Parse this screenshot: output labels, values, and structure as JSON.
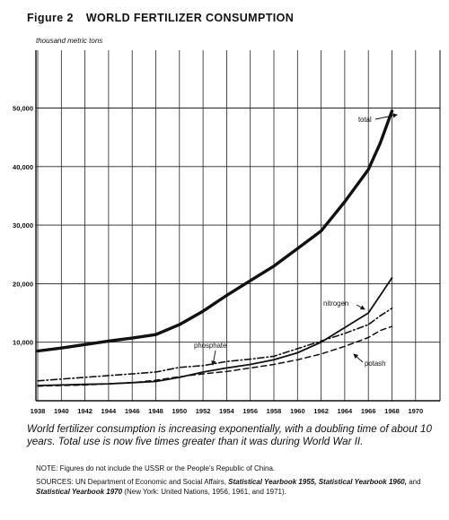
{
  "figure": {
    "number_label": "Figure 2",
    "title": "WORLD FERTILIZER CONSUMPTION",
    "unit_label": "thousand metric tons"
  },
  "caption": "World fertilizer consumption is increasing exponentially, with a doubling time of about 10 years. Total use is now five times greater than it was during World War II.",
  "note": "NOTE: Figures do not include the USSR or the People's Republic of China.",
  "sources": {
    "prefix": "SOURCES: UN Department of Economic and Social Affairs,",
    "book1": "Statistical Yearbook 1955,",
    "book2": "Statistical Yearbook 1960,",
    "and_word": "and",
    "book3": "Statistical Yearbook 1970",
    "suffix": "(New York: United Nations, 1956, 1961, and 1971)."
  },
  "chart_data": {
    "type": "line",
    "title": "WORLD FERTILIZER CONSUMPTION",
    "ylabel": "thousand metric tons",
    "xlabel": "",
    "xlim": [
      1938,
      1970
    ],
    "ylim": [
      0,
      60000
    ],
    "x_ticks": [
      "1938",
      "1940",
      "1942",
      "1944",
      "1946",
      "1948",
      "1950",
      "1952",
      "1954",
      "1956",
      "1958",
      "1960",
      "1962",
      "1964",
      "1966",
      "1968",
      "1970"
    ],
    "y_ticks": [
      "10,000",
      "20,000",
      "30,000",
      "40,000",
      "50,000"
    ],
    "y_tick_values": [
      10000,
      20000,
      30000,
      40000,
      50000
    ],
    "grid": true,
    "series": [
      {
        "name": "total",
        "style": "solid-thick",
        "points": [
          [
            1938,
            8500
          ],
          [
            1940,
            9000
          ],
          [
            1942,
            9600
          ],
          [
            1944,
            10200
          ],
          [
            1946,
            10700
          ],
          [
            1948,
            11300
          ],
          [
            1950,
            13000
          ],
          [
            1952,
            15300
          ],
          [
            1954,
            18000
          ],
          [
            1956,
            20500
          ],
          [
            1958,
            23000
          ],
          [
            1960,
            26000
          ],
          [
            1962,
            29000
          ],
          [
            1964,
            34000
          ],
          [
            1966,
            39500
          ],
          [
            1967,
            44000
          ],
          [
            1968,
            49500
          ]
        ]
      },
      {
        "name": "nitrogen",
        "style": "solid",
        "points": [
          [
            1938,
            2600
          ],
          [
            1940,
            2700
          ],
          [
            1942,
            2800
          ],
          [
            1944,
            2900
          ],
          [
            1946,
            3100
          ],
          [
            1948,
            3300
          ],
          [
            1950,
            4000
          ],
          [
            1952,
            4900
          ],
          [
            1954,
            5600
          ],
          [
            1956,
            6200
          ],
          [
            1958,
            7000
          ],
          [
            1960,
            8200
          ],
          [
            1962,
            10000
          ],
          [
            1964,
            12500
          ],
          [
            1966,
            15000
          ],
          [
            1967,
            18000
          ],
          [
            1968,
            21000
          ]
        ]
      },
      {
        "name": "phosphate",
        "style": "dash-dot",
        "points": [
          [
            1938,
            3400
          ],
          [
            1940,
            3700
          ],
          [
            1942,
            4000
          ],
          [
            1944,
            4300
          ],
          [
            1946,
            4600
          ],
          [
            1948,
            4900
          ],
          [
            1950,
            5700
          ],
          [
            1952,
            6000
          ],
          [
            1954,
            6700
          ],
          [
            1956,
            7100
          ],
          [
            1958,
            7600
          ],
          [
            1960,
            8900
          ],
          [
            1962,
            10200
          ],
          [
            1964,
            11500
          ],
          [
            1966,
            13000
          ],
          [
            1967,
            14500
          ],
          [
            1968,
            15800
          ]
        ]
      },
      {
        "name": "potash",
        "style": "dashed",
        "points": [
          [
            1938,
            2500
          ],
          [
            1940,
            2600
          ],
          [
            1942,
            2700
          ],
          [
            1944,
            2900
          ],
          [
            1946,
            3100
          ],
          [
            1948,
            3500
          ],
          [
            1950,
            4100
          ],
          [
            1952,
            4600
          ],
          [
            1954,
            5000
          ],
          [
            1956,
            5600
          ],
          [
            1958,
            6200
          ],
          [
            1960,
            7000
          ],
          [
            1962,
            8000
          ],
          [
            1964,
            9300
          ],
          [
            1966,
            10800
          ],
          [
            1967,
            12000
          ],
          [
            1968,
            12700
          ]
        ]
      }
    ],
    "annotations": [
      "total",
      "nitrogen",
      "phosphate",
      "potash"
    ]
  }
}
